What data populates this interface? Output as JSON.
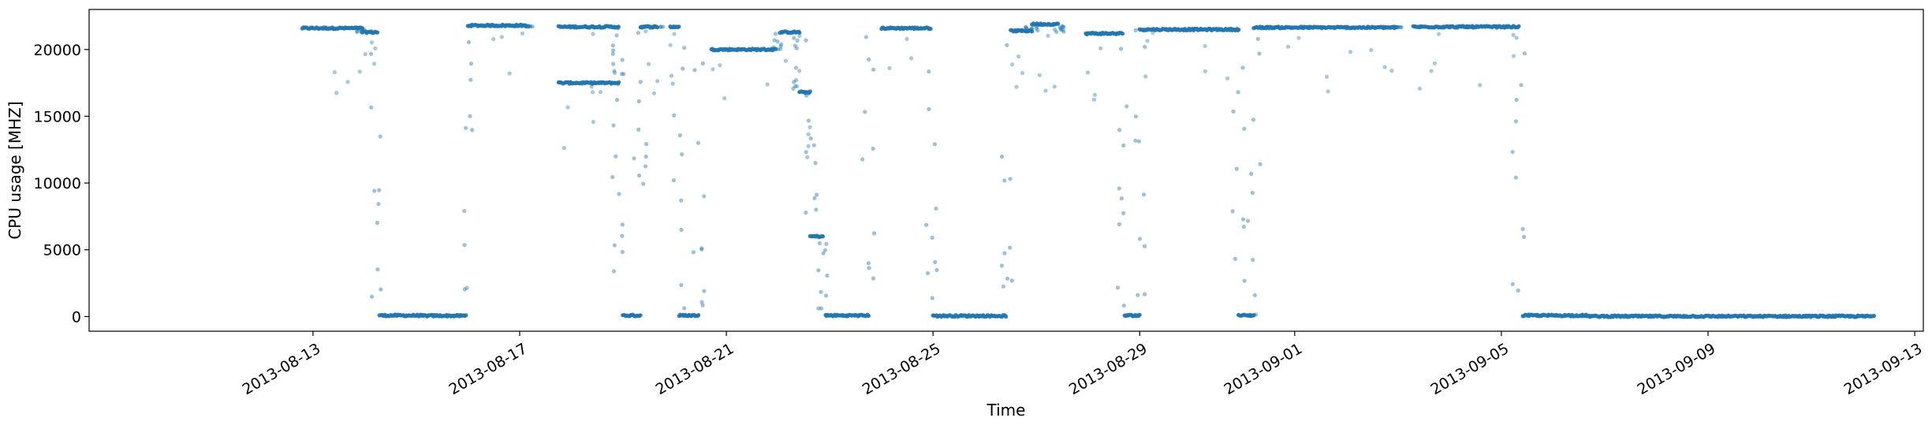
{
  "chart_data": {
    "type": "scatter",
    "xlabel": "Time",
    "ylabel": "CPU usage [MHZ]",
    "x_range": [
      "2013-08-08T16:00",
      "2013-09-13T04:00"
    ],
    "ylim": [
      -1100,
      23000
    ],
    "grid": false,
    "legend": "none",
    "marker_color": "#1f77b4",
    "x_ticks": [
      "2013-08-13",
      "2013-08-17",
      "2013-08-21",
      "2013-08-25",
      "2013-08-29",
      "2013-09-01",
      "2013-09-05",
      "2013-09-09",
      "2013-09-13"
    ],
    "y_ticks": [
      0,
      5000,
      10000,
      15000,
      20000
    ],
    "plateaus": [
      {
        "start": "2013-08-12T19:00",
        "end": "2013-08-13T23:00",
        "value": 21600
      },
      {
        "start": "2013-08-13T23:00",
        "end": "2013-08-14T06:00",
        "value": 21300
      },
      {
        "start": "2013-08-14T07:00",
        "end": "2013-08-15T02:00",
        "value": 80
      },
      {
        "start": "2013-08-15T02:00",
        "end": "2013-08-15T23:00",
        "value": 60
      },
      {
        "start": "2013-08-16T00:00",
        "end": "2013-08-17T03:00",
        "value": 21800
      },
      {
        "start": "2013-08-17T18:00",
        "end": "2013-08-18T22:00",
        "value": 21700
      },
      {
        "start": "2013-08-17T18:00",
        "end": "2013-08-18T22:00",
        "value": 17500
      },
      {
        "start": "2013-08-19T00:00",
        "end": "2013-08-19T08:00",
        "value": 80
      },
      {
        "start": "2013-08-19T08:00",
        "end": "2013-08-19T16:00",
        "value": 21700
      },
      {
        "start": "2013-08-19T22:00",
        "end": "2013-08-20T02:00",
        "value": 21700
      },
      {
        "start": "2013-08-20T02:00",
        "end": "2013-08-20T11:00",
        "value": 80
      },
      {
        "start": "2013-08-20T17:00",
        "end": "2013-08-21T23:00",
        "value": 20000
      },
      {
        "start": "2013-08-22T01:00",
        "end": "2013-08-22T10:00",
        "value": 21300
      },
      {
        "start": "2013-08-22T10:00",
        "end": "2013-08-22T15:00",
        "value": 16800
      },
      {
        "start": "2013-08-22T15:00",
        "end": "2013-08-22T21:00",
        "value": 6000
      },
      {
        "start": "2013-08-22T22:00",
        "end": "2013-08-23T18:00",
        "value": 80
      },
      {
        "start": "2013-08-24T00:00",
        "end": "2013-08-24T23:00",
        "value": 21600
      },
      {
        "start": "2013-08-25T00:00",
        "end": "2013-08-26T10:00",
        "value": 50
      },
      {
        "start": "2013-08-26T12:00",
        "end": "2013-08-26T22:00",
        "value": 21400
      },
      {
        "start": "2013-08-26T22:00",
        "end": "2013-08-27T10:00",
        "value": 21900
      },
      {
        "start": "2013-08-27T23:00",
        "end": "2013-08-28T16:00",
        "value": 21200
      },
      {
        "start": "2013-08-28T17:00",
        "end": "2013-08-29T00:00",
        "value": 80
      },
      {
        "start": "2013-08-29T00:00",
        "end": "2013-08-30T22:00",
        "value": 21500
      },
      {
        "start": "2013-08-30T22:00",
        "end": "2013-08-31T05:00",
        "value": 80
      },
      {
        "start": "2013-08-31T05:00",
        "end": "2013-09-02T23:00",
        "value": 21650
      },
      {
        "start": "2013-09-03T07:00",
        "end": "2013-09-04T08:00",
        "value": 21700
      },
      {
        "start": "2013-09-04T08:00",
        "end": "2013-09-05T08:00",
        "value": 21700
      },
      {
        "start": "2013-09-05T10:00",
        "end": "2013-09-06T16:00",
        "value": 80
      },
      {
        "start": "2013-09-06T16:00",
        "end": "2013-09-12T05:00",
        "value": 20
      }
    ]
  }
}
